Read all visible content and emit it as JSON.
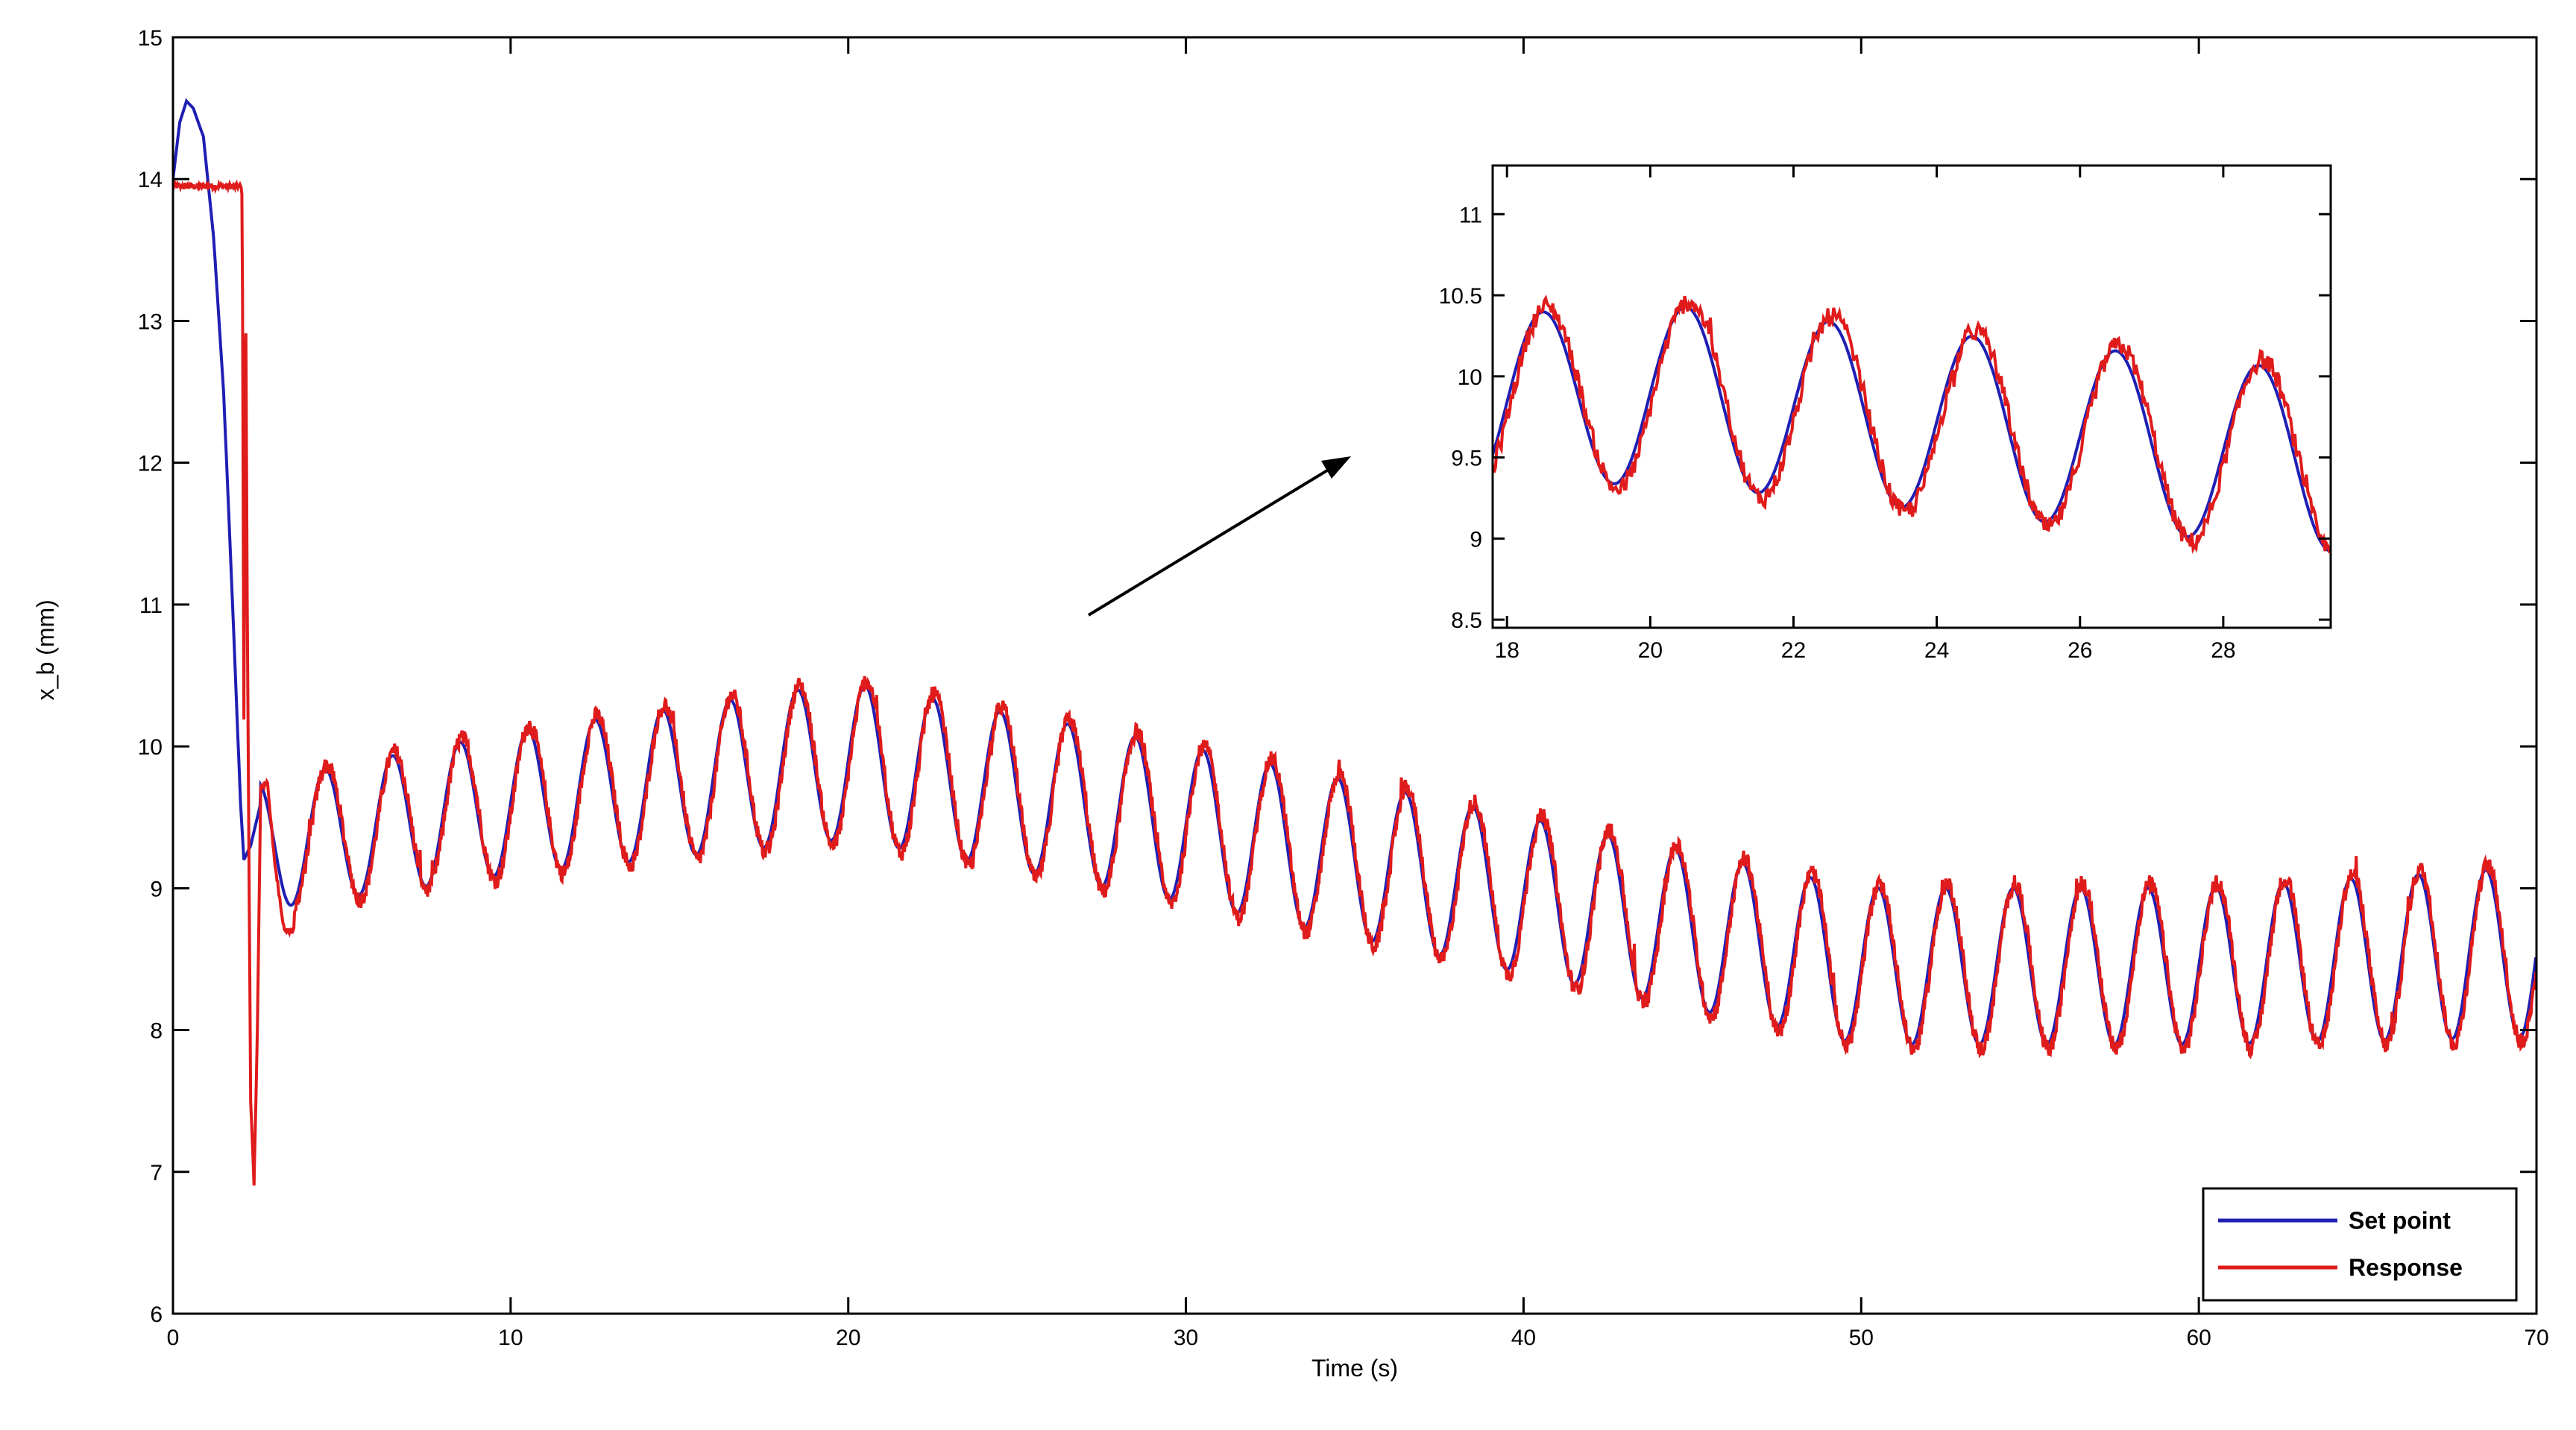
{
  "chart_data": [
    {
      "id": "main",
      "type": "line",
      "title": "",
      "xlabel": "Time (s)",
      "ylabel": "x_b (mm)",
      "xlim": [
        0,
        70
      ],
      "ylim": [
        6,
        15
      ],
      "xticks": [
        0,
        10,
        20,
        30,
        40,
        50,
        60,
        70
      ],
      "yticks": [
        6,
        7,
        8,
        9,
        10,
        11,
        12,
        13,
        14,
        15
      ],
      "grid": false,
      "legend": {
        "placement": "bottom-right",
        "entries": [
          "Set point",
          "Response"
        ]
      },
      "series": [
        {
          "name": "Set point",
          "color": "#1f1fb4",
          "description_model": {
            "initial": [
              [
                0,
                14.0
              ],
              [
                0.2,
                14.4
              ],
              [
                0.4,
                14.55
              ],
              [
                0.6,
                14.5
              ],
              [
                0.9,
                14.3
              ],
              [
                1.2,
                13.6
              ],
              [
                1.5,
                12.5
              ],
              [
                1.8,
                10.8
              ],
              [
                2.0,
                9.6
              ],
              [
                2.1,
                9.2
              ],
              [
                2.3,
                9.3
              ],
              [
                2.6,
                9.6
              ]
            ],
            "oscillation_start": 2.6,
            "period": 2.0,
            "phase_peak_at": 0.5,
            "envelope": {
              "mid": [
                [
                  2.6,
                  9.3
                ],
                [
                  10,
                  9.6
                ],
                [
                  20,
                  9.9
                ],
                [
                  30,
                  9.45
                ],
                [
                  40,
                  8.95
                ],
                [
                  50,
                  8.45
                ],
                [
                  60,
                  8.45
                ],
                [
                  70,
                  8.55
                ]
              ],
              "amp": [
                [
                  2.6,
                  0.45
                ],
                [
                  10,
                  0.5
                ],
                [
                  20,
                  0.55
                ],
                [
                  30,
                  0.55
                ],
                [
                  40,
                  0.55
                ],
                [
                  50,
                  0.55
                ],
                [
                  60,
                  0.55
                ],
                [
                  70,
                  0.6
                ]
              ]
            }
          }
        },
        {
          "name": "Response",
          "color": "#e01b1b",
          "description_model": {
            "initial": [
              [
                0,
                13.95
              ],
              [
                0.3,
                13.95
              ],
              [
                1.0,
                13.95
              ],
              [
                2.0,
                13.95
              ],
              [
                2.05,
                13.9
              ],
              [
                2.1,
                10.2
              ],
              [
                2.15,
                13.4
              ],
              [
                2.2,
                11.0
              ],
              [
                2.3,
                7.5
              ],
              [
                2.4,
                6.9
              ],
              [
                2.5,
                8.0
              ],
              [
                2.6,
                9.7
              ],
              [
                2.8,
                9.75
              ],
              [
                3.0,
                9.2
              ],
              [
                3.3,
                8.7
              ],
              [
                3.6,
                8.7
              ]
            ],
            "oscillation_start": 3.6,
            "noise": 0.06
          }
        }
      ]
    },
    {
      "id": "inset",
      "type": "line",
      "title": "",
      "xlabel": "",
      "ylabel": "",
      "xlim": [
        17.8,
        29.5
      ],
      "ylim": [
        8.45,
        11.3
      ],
      "xticks": [
        18,
        20,
        22,
        24,
        26,
        28
      ],
      "yticks": [
        8.5,
        9,
        9.5,
        10,
        10.5,
        11
      ],
      "ytick_labels": [
        "8.5",
        "9",
        "9.5",
        "10",
        "10.5",
        "11"
      ],
      "grid": false,
      "series": [
        {
          "name": "Set point",
          "color": "#1f1fb4"
        },
        {
          "name": "Response",
          "color": "#e01b1b"
        }
      ]
    }
  ],
  "legend_labels": [
    "Set point",
    "Response"
  ]
}
